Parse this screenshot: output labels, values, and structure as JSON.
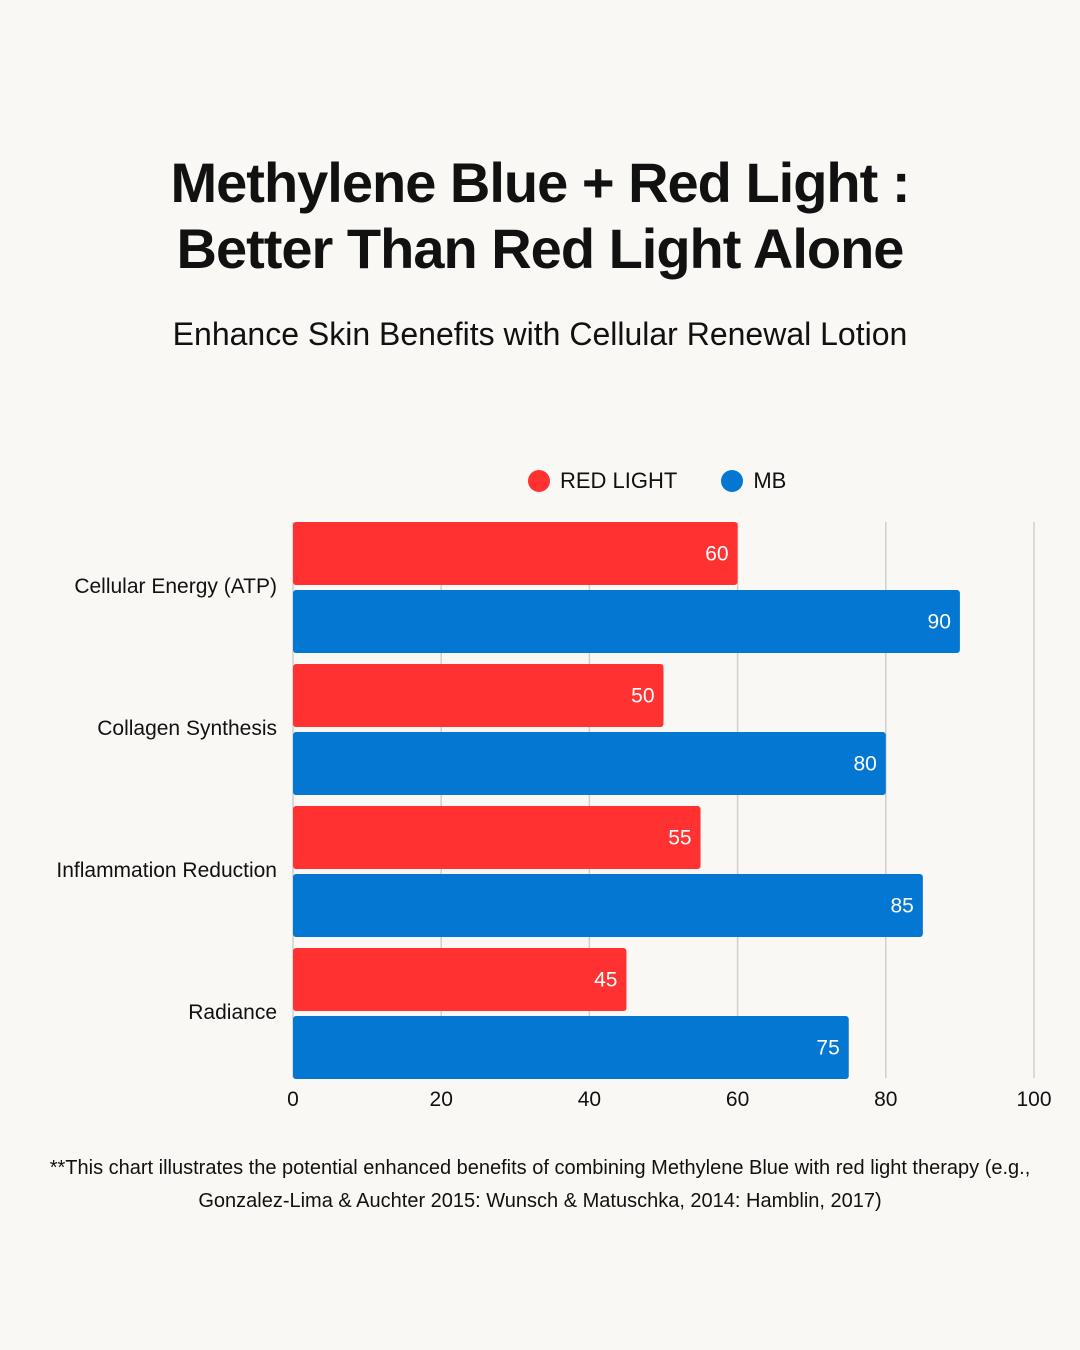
{
  "title_line1": "Methylene Blue + Red Light :",
  "title_line2": "Better Than Red Light Alone",
  "subtitle": "Enhance Skin Benefits with Cellular Renewal Lotion",
  "footnote_line1": "**This chart illustrates the potential enhanced benefits of combining Methylene Blue with red light therapy (e.g.,",
  "footnote_line2": "Gonzalez-Lima & Auchter 2015: Wunsch & Matuschka, 2014: Hamblin, 2017)",
  "chart_data": {
    "type": "bar",
    "orientation": "horizontal",
    "categories": [
      "Cellular Energy (ATP)",
      "Collagen Synthesis",
      "Inflammation Reduction",
      "Radiance"
    ],
    "series": [
      {
        "name": "RED LIGHT",
        "color": "#ff3131",
        "values": [
          60,
          50,
          55,
          45
        ]
      },
      {
        "name": "MB",
        "color": "#0377d1",
        "values": [
          90,
          80,
          85,
          75
        ]
      }
    ],
    "xlim": [
      0,
      100
    ],
    "xticks": [
      "0",
      "20",
      "40",
      "60",
      "80",
      "100"
    ],
    "grid": true,
    "legend": "top",
    "data_labels": true
  }
}
